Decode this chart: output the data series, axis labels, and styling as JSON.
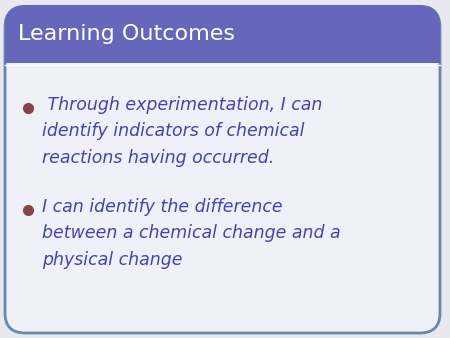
{
  "title": "Learning Outcomes",
  "title_color": "#ffffff",
  "title_bg_color": "#6666bb",
  "slide_bg_color": "#f0f0f8",
  "border_color": "#6688aa",
  "bullet_color": "#884444",
  "text_color": "#4444aa",
  "bullet1_lines": [
    " Through experimentation, I can",
    "identify indicators of chemical",
    "reactions having occurred."
  ],
  "bullet2_lines": [
    "I can identify the difference",
    "between a chemical change and a",
    "physical change"
  ],
  "title_fontsize": 16,
  "body_fontsize": 12.5,
  "fig_bg": "#e8e8f0"
}
